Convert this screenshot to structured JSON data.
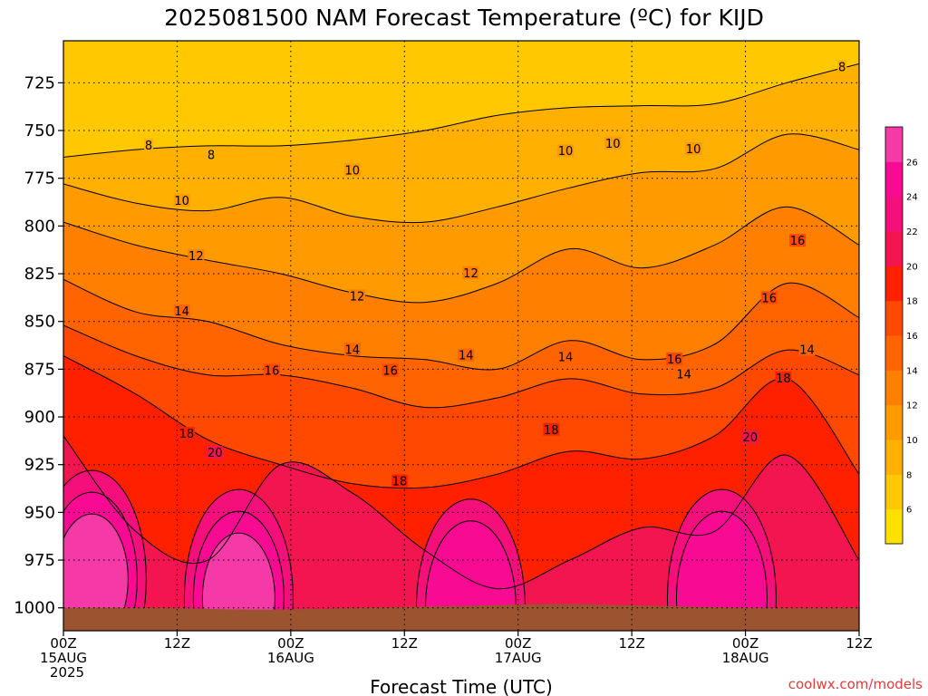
{
  "chart_data": {
    "type": "heatmap",
    "title": "2025081500 NAM Forecast Temperature (ºC) for KIJD",
    "xlabel": "Forecast Time (UTC)",
    "ylabel": "",
    "credit": "coolwx.com/models",
    "y_axis": {
      "unit": "hPa",
      "reversed": true,
      "range": [
        1012,
        703
      ],
      "ticks": [
        725,
        750,
        775,
        800,
        825,
        850,
        875,
        900,
        925,
        950,
        975,
        1000
      ]
    },
    "x_axis": {
      "unit": "hours from 00Z 15AUG 2025",
      "range": [
        0,
        84
      ],
      "ticks": [
        {
          "hour": 0,
          "line1": "00Z",
          "line2": "15AUG",
          "line3": "2025"
        },
        {
          "hour": 12,
          "line1": "12Z",
          "line2": "",
          "line3": ""
        },
        {
          "hour": 24,
          "line1": "00Z",
          "line2": "16AUG",
          "line3": ""
        },
        {
          "hour": 36,
          "line1": "12Z",
          "line2": "",
          "line3": ""
        },
        {
          "hour": 48,
          "line1": "00Z",
          "line2": "17AUG",
          "line3": ""
        },
        {
          "hour": 60,
          "line1": "12Z",
          "line2": "",
          "line3": ""
        },
        {
          "hour": 72,
          "line1": "00Z",
          "line2": "18AUG",
          "line3": ""
        },
        {
          "hour": 84,
          "line1": "12Z",
          "line2": "",
          "line3": ""
        }
      ]
    },
    "grid": true,
    "colorbar": {
      "placement": "right",
      "levels": [
        4,
        6,
        8,
        10,
        12,
        14,
        16,
        18,
        20,
        22,
        24,
        26,
        28
      ],
      "tick_labels": [
        6,
        8,
        10,
        12,
        14,
        16,
        18,
        20,
        22,
        24,
        26
      ],
      "colors": [
        "#ffe000",
        "#ffc800",
        "#ffb000",
        "#ff9a00",
        "#ff8000",
        "#ff6400",
        "#ff4800",
        "#ff2000",
        "#f21550",
        "#f50f7a",
        "#f80a92",
        "#f53aa8"
      ]
    },
    "ground": {
      "color": "#9c5430",
      "pressure_hPa": [
        1000,
        1000,
        1001,
        1000,
        999,
        998,
        999,
        1000,
        1000
      ]
    },
    "isotherms": [
      {
        "value": 8,
        "pressure_hPa": [
          764,
          760,
          758,
          758,
          755,
          750,
          742,
          738,
          737,
          736,
          725,
          715
        ]
      },
      {
        "value": 10,
        "pressure_hPa": [
          778,
          788,
          792,
          785,
          795,
          798,
          790,
          780,
          772,
          770,
          752,
          760
        ]
      },
      {
        "value": 12,
        "pressure_hPa": [
          798,
          810,
          818,
          825,
          835,
          840,
          830,
          812,
          822,
          810,
          790,
          810
        ]
      },
      {
        "value": 14,
        "pressure_hPa": [
          828,
          845,
          850,
          862,
          868,
          870,
          875,
          860,
          870,
          862,
          830,
          848
        ]
      },
      {
        "value": 16,
        "pressure_hPa": [
          852,
          868,
          878,
          878,
          885,
          895,
          890,
          880,
          888,
          885,
          865,
          878
        ]
      },
      {
        "value": 18,
        "pressure_hPa": [
          868,
          888,
          912,
          925,
          935,
          937,
          930,
          918,
          922,
          910,
          880,
          930
        ]
      },
      {
        "value": 20,
        "pressure_hPa": [
          910,
          960,
          975,
          925,
          940,
          970,
          990,
          975,
          958,
          960,
          920,
          975
        ]
      }
    ],
    "contour_labels": [
      {
        "value": 8,
        "hour": 9,
        "p": 758
      },
      {
        "value": 8,
        "hour": 15.6,
        "p": 763
      },
      {
        "value": 8,
        "hour": 82.2,
        "p": 717
      },
      {
        "value": 10,
        "hour": 12.5,
        "p": 787
      },
      {
        "value": 10,
        "hour": 30.5,
        "p": 771
      },
      {
        "value": 10,
        "hour": 53,
        "p": 761
      },
      {
        "value": 10,
        "hour": 58,
        "p": 757
      },
      {
        "value": 10,
        "hour": 66.5,
        "p": 760
      },
      {
        "value": 12,
        "hour": 14,
        "p": 816
      },
      {
        "value": 12,
        "hour": 31,
        "p": 837
      },
      {
        "value": 12,
        "hour": 43,
        "p": 825
      },
      {
        "value": 14,
        "hour": 12.5,
        "p": 845
      },
      {
        "value": 14,
        "hour": 30.5,
        "p": 865
      },
      {
        "value": 14,
        "hour": 42.5,
        "p": 868
      },
      {
        "value": 14,
        "hour": 65.5,
        "p": 878
      },
      {
        "value": 14,
        "hour": 53,
        "p": 869
      },
      {
        "value": 14,
        "hour": 78.5,
        "p": 865
      },
      {
        "value": 16,
        "hour": 22,
        "p": 876
      },
      {
        "value": 16,
        "hour": 64.5,
        "p": 870
      },
      {
        "value": 16,
        "hour": 34.5,
        "p": 876
      },
      {
        "value": 16,
        "hour": 74.5,
        "p": 838
      },
      {
        "value": 16,
        "hour": 77.5,
        "p": 808
      },
      {
        "value": 18,
        "hour": 13,
        "p": 909
      },
      {
        "value": 18,
        "hour": 35.5,
        "p": 934
      },
      {
        "value": 18,
        "hour": 51.5,
        "p": 907
      },
      {
        "value": 18,
        "hour": 76,
        "p": 880
      },
      {
        "value": 20,
        "hour": 16,
        "p": 919
      },
      {
        "value": 20,
        "hour": 72.5,
        "p": 911
      }
    ],
    "warm_cores": [
      {
        "hour": 3,
        "p": 985,
        "peak_c": 27
      },
      {
        "hour": 18.5,
        "p": 995,
        "peak_c": 26
      },
      {
        "hour": 43,
        "p": 1000,
        "peak_c": 25
      },
      {
        "hour": 69.5,
        "p": 995,
        "peak_c": 24
      }
    ]
  }
}
